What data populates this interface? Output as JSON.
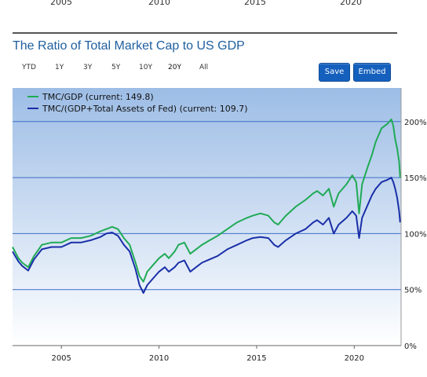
{
  "top_axis": {
    "ticks": [
      "2005",
      "2010",
      "2015",
      "2020"
    ]
  },
  "title": "The Ratio of Total Market Cap to US GDP",
  "range_buttons": [
    "YTD",
    "1Y",
    "3Y",
    "5Y",
    "10Y",
    "20Y",
    "All"
  ],
  "active_range": "20Y",
  "actions": {
    "save": "Save",
    "embed": "Embed"
  },
  "colors": {
    "tmc_gdp": "#1faa55",
    "tmc_gdp_fed": "#1a2fa8",
    "plot_top": "#9dbde6",
    "plot_bottom": "#ffffff",
    "grid": "#3b6fc7"
  },
  "chart_data": {
    "type": "line",
    "x_ticks": [
      "2005",
      "2010",
      "2015",
      "2020"
    ],
    "y_ticks": [
      "0%",
      "50%",
      "100%",
      "150%",
      "200%"
    ],
    "xlim": [
      2002.5,
      2022.4
    ],
    "ylim": [
      0,
      230
    ],
    "grid": true,
    "legend_position": "top-left",
    "series": [
      {
        "name": "TMC/GDP (current: 149.8)",
        "color": "#1faa55",
        "points": [
          [
            2002.5,
            88
          ],
          [
            2002.8,
            78
          ],
          [
            2003.0,
            74
          ],
          [
            2003.3,
            70
          ],
          [
            2003.6,
            80
          ],
          [
            2004.0,
            90
          ],
          [
            2004.5,
            92
          ],
          [
            2005.0,
            92
          ],
          [
            2005.5,
            96
          ],
          [
            2006.0,
            96
          ],
          [
            2006.5,
            98
          ],
          [
            2007.0,
            102
          ],
          [
            2007.3,
            104
          ],
          [
            2007.6,
            106
          ],
          [
            2007.9,
            104
          ],
          [
            2008.2,
            96
          ],
          [
            2008.5,
            90
          ],
          [
            2008.8,
            74
          ],
          [
            2009.0,
            62
          ],
          [
            2009.2,
            57
          ],
          [
            2009.4,
            66
          ],
          [
            2009.7,
            72
          ],
          [
            2010.0,
            78
          ],
          [
            2010.3,
            82
          ],
          [
            2010.5,
            78
          ],
          [
            2010.8,
            84
          ],
          [
            2011.0,
            90
          ],
          [
            2011.3,
            92
          ],
          [
            2011.6,
            82
          ],
          [
            2011.9,
            86
          ],
          [
            2012.2,
            90
          ],
          [
            2012.6,
            94
          ],
          [
            2013.0,
            98
          ],
          [
            2013.5,
            104
          ],
          [
            2014.0,
            110
          ],
          [
            2014.5,
            114
          ],
          [
            2014.8,
            116
          ],
          [
            2015.2,
            118
          ],
          [
            2015.6,
            116
          ],
          [
            2015.9,
            110
          ],
          [
            2016.1,
            108
          ],
          [
            2016.5,
            116
          ],
          [
            2017.0,
            124
          ],
          [
            2017.5,
            130
          ],
          [
            2017.9,
            136
          ],
          [
            2018.1,
            138
          ],
          [
            2018.4,
            134
          ],
          [
            2018.7,
            140
          ],
          [
            2018.95,
            124
          ],
          [
            2019.2,
            136
          ],
          [
            2019.6,
            144
          ],
          [
            2019.9,
            152
          ],
          [
            2020.1,
            146
          ],
          [
            2020.25,
            118
          ],
          [
            2020.4,
            144
          ],
          [
            2020.7,
            160
          ],
          [
            2020.9,
            170
          ],
          [
            2021.1,
            182
          ],
          [
            2021.4,
            194
          ],
          [
            2021.7,
            198
          ],
          [
            2021.9,
            202
          ],
          [
            2022.0,
            196
          ],
          [
            2022.1,
            184
          ],
          [
            2022.2,
            176
          ],
          [
            2022.3,
            164
          ],
          [
            2022.35,
            150
          ]
        ]
      },
      {
        "name": "TMC/(GDP+Total Assets of Fed) (current: 109.7)",
        "color": "#1a2fa8",
        "points": [
          [
            2002.5,
            84
          ],
          [
            2002.8,
            75
          ],
          [
            2003.0,
            71
          ],
          [
            2003.3,
            67
          ],
          [
            2003.6,
            77
          ],
          [
            2004.0,
            86
          ],
          [
            2004.5,
            88
          ],
          [
            2005.0,
            88
          ],
          [
            2005.5,
            92
          ],
          [
            2006.0,
            92
          ],
          [
            2006.5,
            94
          ],
          [
            2007.0,
            97
          ],
          [
            2007.3,
            100
          ],
          [
            2007.6,
            101
          ],
          [
            2007.9,
            98
          ],
          [
            2008.2,
            90
          ],
          [
            2008.5,
            84
          ],
          [
            2008.8,
            68
          ],
          [
            2009.0,
            54
          ],
          [
            2009.2,
            47
          ],
          [
            2009.4,
            54
          ],
          [
            2009.7,
            60
          ],
          [
            2010.0,
            66
          ],
          [
            2010.3,
            70
          ],
          [
            2010.5,
            66
          ],
          [
            2010.8,
            70
          ],
          [
            2011.0,
            74
          ],
          [
            2011.3,
            76
          ],
          [
            2011.6,
            66
          ],
          [
            2011.9,
            70
          ],
          [
            2012.2,
            74
          ],
          [
            2012.6,
            77
          ],
          [
            2013.0,
            80
          ],
          [
            2013.5,
            86
          ],
          [
            2014.0,
            90
          ],
          [
            2014.5,
            94
          ],
          [
            2014.8,
            96
          ],
          [
            2015.2,
            97
          ],
          [
            2015.6,
            96
          ],
          [
            2015.9,
            90
          ],
          [
            2016.1,
            88
          ],
          [
            2016.5,
            94
          ],
          [
            2017.0,
            100
          ],
          [
            2017.5,
            104
          ],
          [
            2017.9,
            110
          ],
          [
            2018.1,
            112
          ],
          [
            2018.4,
            108
          ],
          [
            2018.7,
            114
          ],
          [
            2018.95,
            100
          ],
          [
            2019.2,
            108
          ],
          [
            2019.6,
            114
          ],
          [
            2019.9,
            120
          ],
          [
            2020.1,
            116
          ],
          [
            2020.25,
            96
          ],
          [
            2020.4,
            114
          ],
          [
            2020.7,
            126
          ],
          [
            2020.9,
            134
          ],
          [
            2021.1,
            140
          ],
          [
            2021.4,
            146
          ],
          [
            2021.7,
            148
          ],
          [
            2021.9,
            150
          ],
          [
            2022.0,
            146
          ],
          [
            2022.1,
            140
          ],
          [
            2022.2,
            132
          ],
          [
            2022.3,
            120
          ],
          [
            2022.35,
            110
          ]
        ]
      }
    ]
  }
}
